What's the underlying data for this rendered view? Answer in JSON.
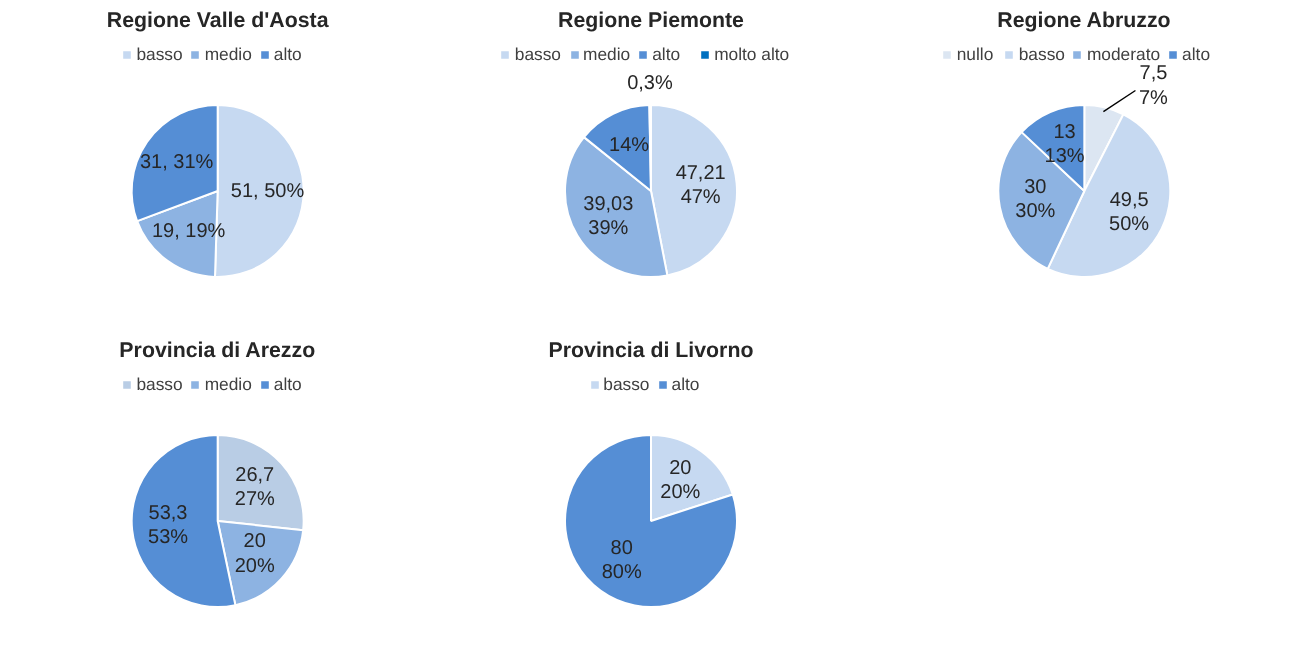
{
  "chart_data": [
    {
      "type": "pie",
      "title": "Regione Valle d'Aosta",
      "categories": [
        "basso",
        "medio",
        "alto"
      ],
      "values": [
        51,
        19,
        31
      ],
      "colors": [
        "#c6d9f1",
        "#8db3e2",
        "#558ed5"
      ],
      "value_labels": [
        "51, 50%",
        "19, 19%",
        "31, 31%"
      ],
      "legend": "top"
    },
    {
      "type": "pie",
      "title": "Regione Piemonte",
      "categories": [
        "basso",
        "medio",
        "alto",
        "molto alto"
      ],
      "values": [
        47.21,
        39.03,
        14,
        0.3
      ],
      "colors": [
        "#c6d9f1",
        "#8db3e2",
        "#558ed5",
        "#0070c0"
      ],
      "value_labels": [
        "47,21\n47%",
        "39,03\n39%",
        "14%",
        "0,3%"
      ],
      "legend": "top"
    },
    {
      "type": "pie",
      "title": "Regione Abruzzo",
      "categories": [
        "nullo",
        "basso",
        "moderato",
        "alto"
      ],
      "values": [
        7.5,
        49.5,
        30,
        13
      ],
      "colors": [
        "#dce6f2",
        "#c6d9f1",
        "#8db3e2",
        "#558ed5"
      ],
      "value_labels": [
        "7,5\n7%",
        "49,5\n50%",
        "30\n30%",
        "13\n13%"
      ],
      "legend": "top"
    },
    {
      "type": "pie",
      "title": "Provincia di Arezzo",
      "categories": [
        "basso",
        "medio",
        "alto"
      ],
      "values": [
        26.7,
        20,
        53.3
      ],
      "colors": [
        "#b9cde5",
        "#8db3e2",
        "#558ed5"
      ],
      "value_labels": [
        "26,7\n27%",
        "20\n20%",
        "53,3\n53%"
      ],
      "legend": "top"
    },
    {
      "type": "pie",
      "title": "Provincia di Livorno",
      "categories": [
        "basso",
        "alto"
      ],
      "values": [
        20,
        80
      ],
      "colors": [
        "#c6d9f1",
        "#558ed5"
      ],
      "value_labels": [
        "20\n20%",
        "80\n80%"
      ],
      "legend": "top"
    }
  ]
}
